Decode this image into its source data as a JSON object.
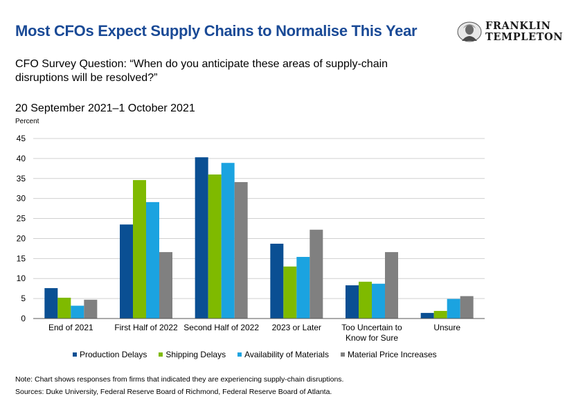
{
  "header": {
    "title": "Most CFOs Expect Supply Chains to Normalise This Year",
    "logo_line1": "FRANKLIN",
    "logo_line2": "TEMPLETON"
  },
  "subtitle": "CFO Survey Question: “When do you anticipate these areas of supply-chain disruptions will be resolved?”",
  "date_range": "20 September 2021–1 October 2021",
  "footer": {
    "note": "Note: Chart shows responses from firms that indicated they are experiencing supply-chain disruptions.",
    "sources": "Sources: Duke University, Federal Reserve Board of Richmond, Federal Reserve Board of Atlanta."
  },
  "chart_data": {
    "type": "bar",
    "title": "Most CFOs Expect Supply Chains to Normalise This Year",
    "ylabel": "Percent",
    "xlabel": "",
    "ylim": [
      0,
      45
    ],
    "yticks": [
      0,
      5,
      10,
      15,
      20,
      25,
      30,
      35,
      40,
      45
    ],
    "grid": true,
    "legend_position": "bottom",
    "categories": [
      "End of 2021",
      "First Half of 2022",
      "Second Half of 2022",
      "2023 or Later",
      "Too Uncertain to Know for Sure",
      "Unsure"
    ],
    "category_lines": [
      [
        "End of 2021"
      ],
      [
        "First Half of 2022"
      ],
      [
        "Second Half of 2022"
      ],
      [
        "2023 or Later"
      ],
      [
        "Too Uncertain to",
        "Know for Sure"
      ],
      [
        "Unsure"
      ]
    ],
    "series": [
      {
        "name": "Production Delays",
        "color": "#0a4f93",
        "values": [
          7.6,
          23.5,
          40.3,
          18.7,
          8.3,
          1.4
        ]
      },
      {
        "name": "Shipping Delays",
        "color": "#7fba00",
        "values": [
          5.2,
          34.6,
          36.0,
          13.0,
          9.2,
          1.9
        ]
      },
      {
        "name": "Availability of Materials",
        "color": "#1ba3e0",
        "values": [
          3.2,
          29.1,
          38.9,
          15.4,
          8.7,
          4.9
        ]
      },
      {
        "name": "Material Price Increases",
        "color": "#808080",
        "values": [
          4.7,
          16.6,
          34.1,
          22.2,
          16.6,
          5.6
        ]
      }
    ]
  }
}
